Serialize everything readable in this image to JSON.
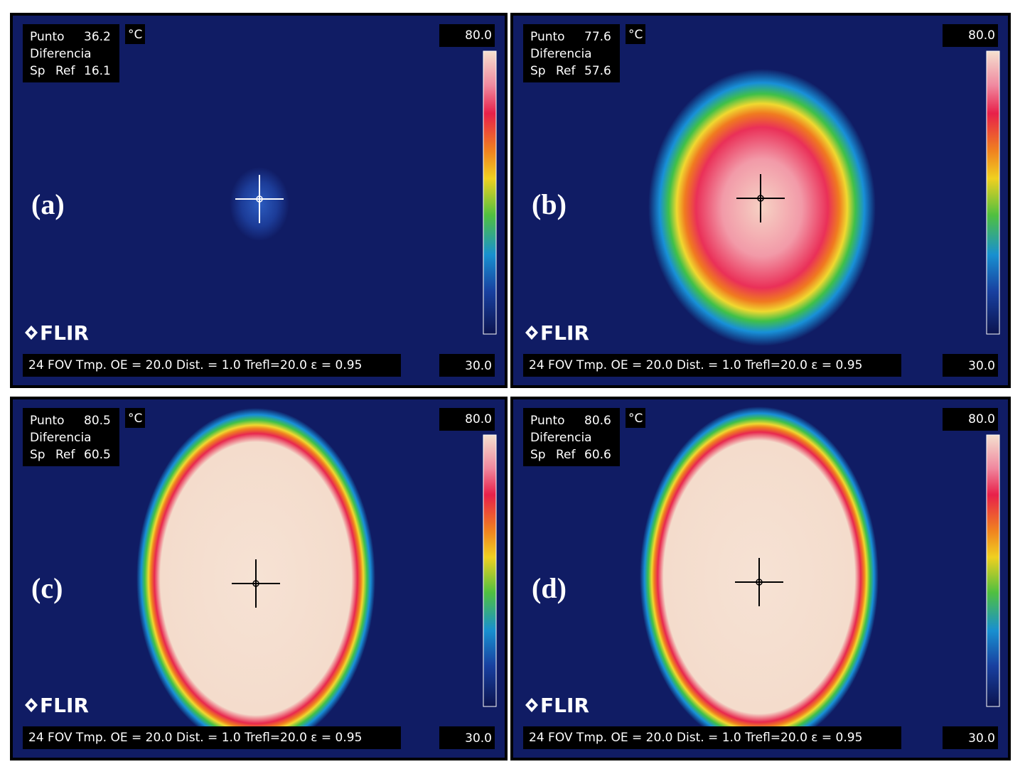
{
  "panels": [
    {
      "label": "(a)",
      "point_label": "Punto",
      "point_value": "36.2",
      "unit": "°C",
      "diff_label": "Diferencia",
      "sp_label": "Sp",
      "ref_label": "Ref",
      "ref_value": "16.1",
      "scale_max": "80.0",
      "scale_min": "30.0",
      "logo": "FLIR",
      "footer": "24 FOV  Tmp. OE = 20.0  Dist. = 1.0  Trefl=20.0  ε = 0.95"
    },
    {
      "label": "(b)",
      "point_label": "Punto",
      "point_value": "77.6",
      "unit": "°C",
      "diff_label": "Diferencia",
      "sp_label": "Sp",
      "ref_label": "Ref",
      "ref_value": "57.6",
      "scale_max": "80.0",
      "scale_min": "30.0",
      "logo": "FLIR",
      "footer": "24 FOV  Tmp. OE = 20.0  Dist. = 1.0  Trefl=20.0  ε = 0.95"
    },
    {
      "label": "(c)",
      "point_label": "Punto",
      "point_value": "80.5",
      "unit": "°C",
      "diff_label": "Diferencia",
      "sp_label": "Sp",
      "ref_label": "Ref",
      "ref_value": "60.5",
      "scale_max": "80.0",
      "scale_min": "30.0",
      "logo": "FLIR",
      "footer": "24 FOV  Tmp. OE = 20.0  Dist. = 1.0  Trefl=20.0  ε = 0.95"
    },
    {
      "label": "(d)",
      "point_label": "Punto",
      "point_value": "80.6",
      "unit": "°C",
      "diff_label": "Diferencia",
      "sp_label": "Sp",
      "ref_label": "Ref",
      "ref_value": "60.6",
      "scale_max": "80.0",
      "scale_min": "30.0",
      "logo": "FLIR",
      "footer": "24 FOV  Tmp. OE = 20.0  Dist. = 1.0  Trefl=20.0  ε = 0.95"
    }
  ]
}
